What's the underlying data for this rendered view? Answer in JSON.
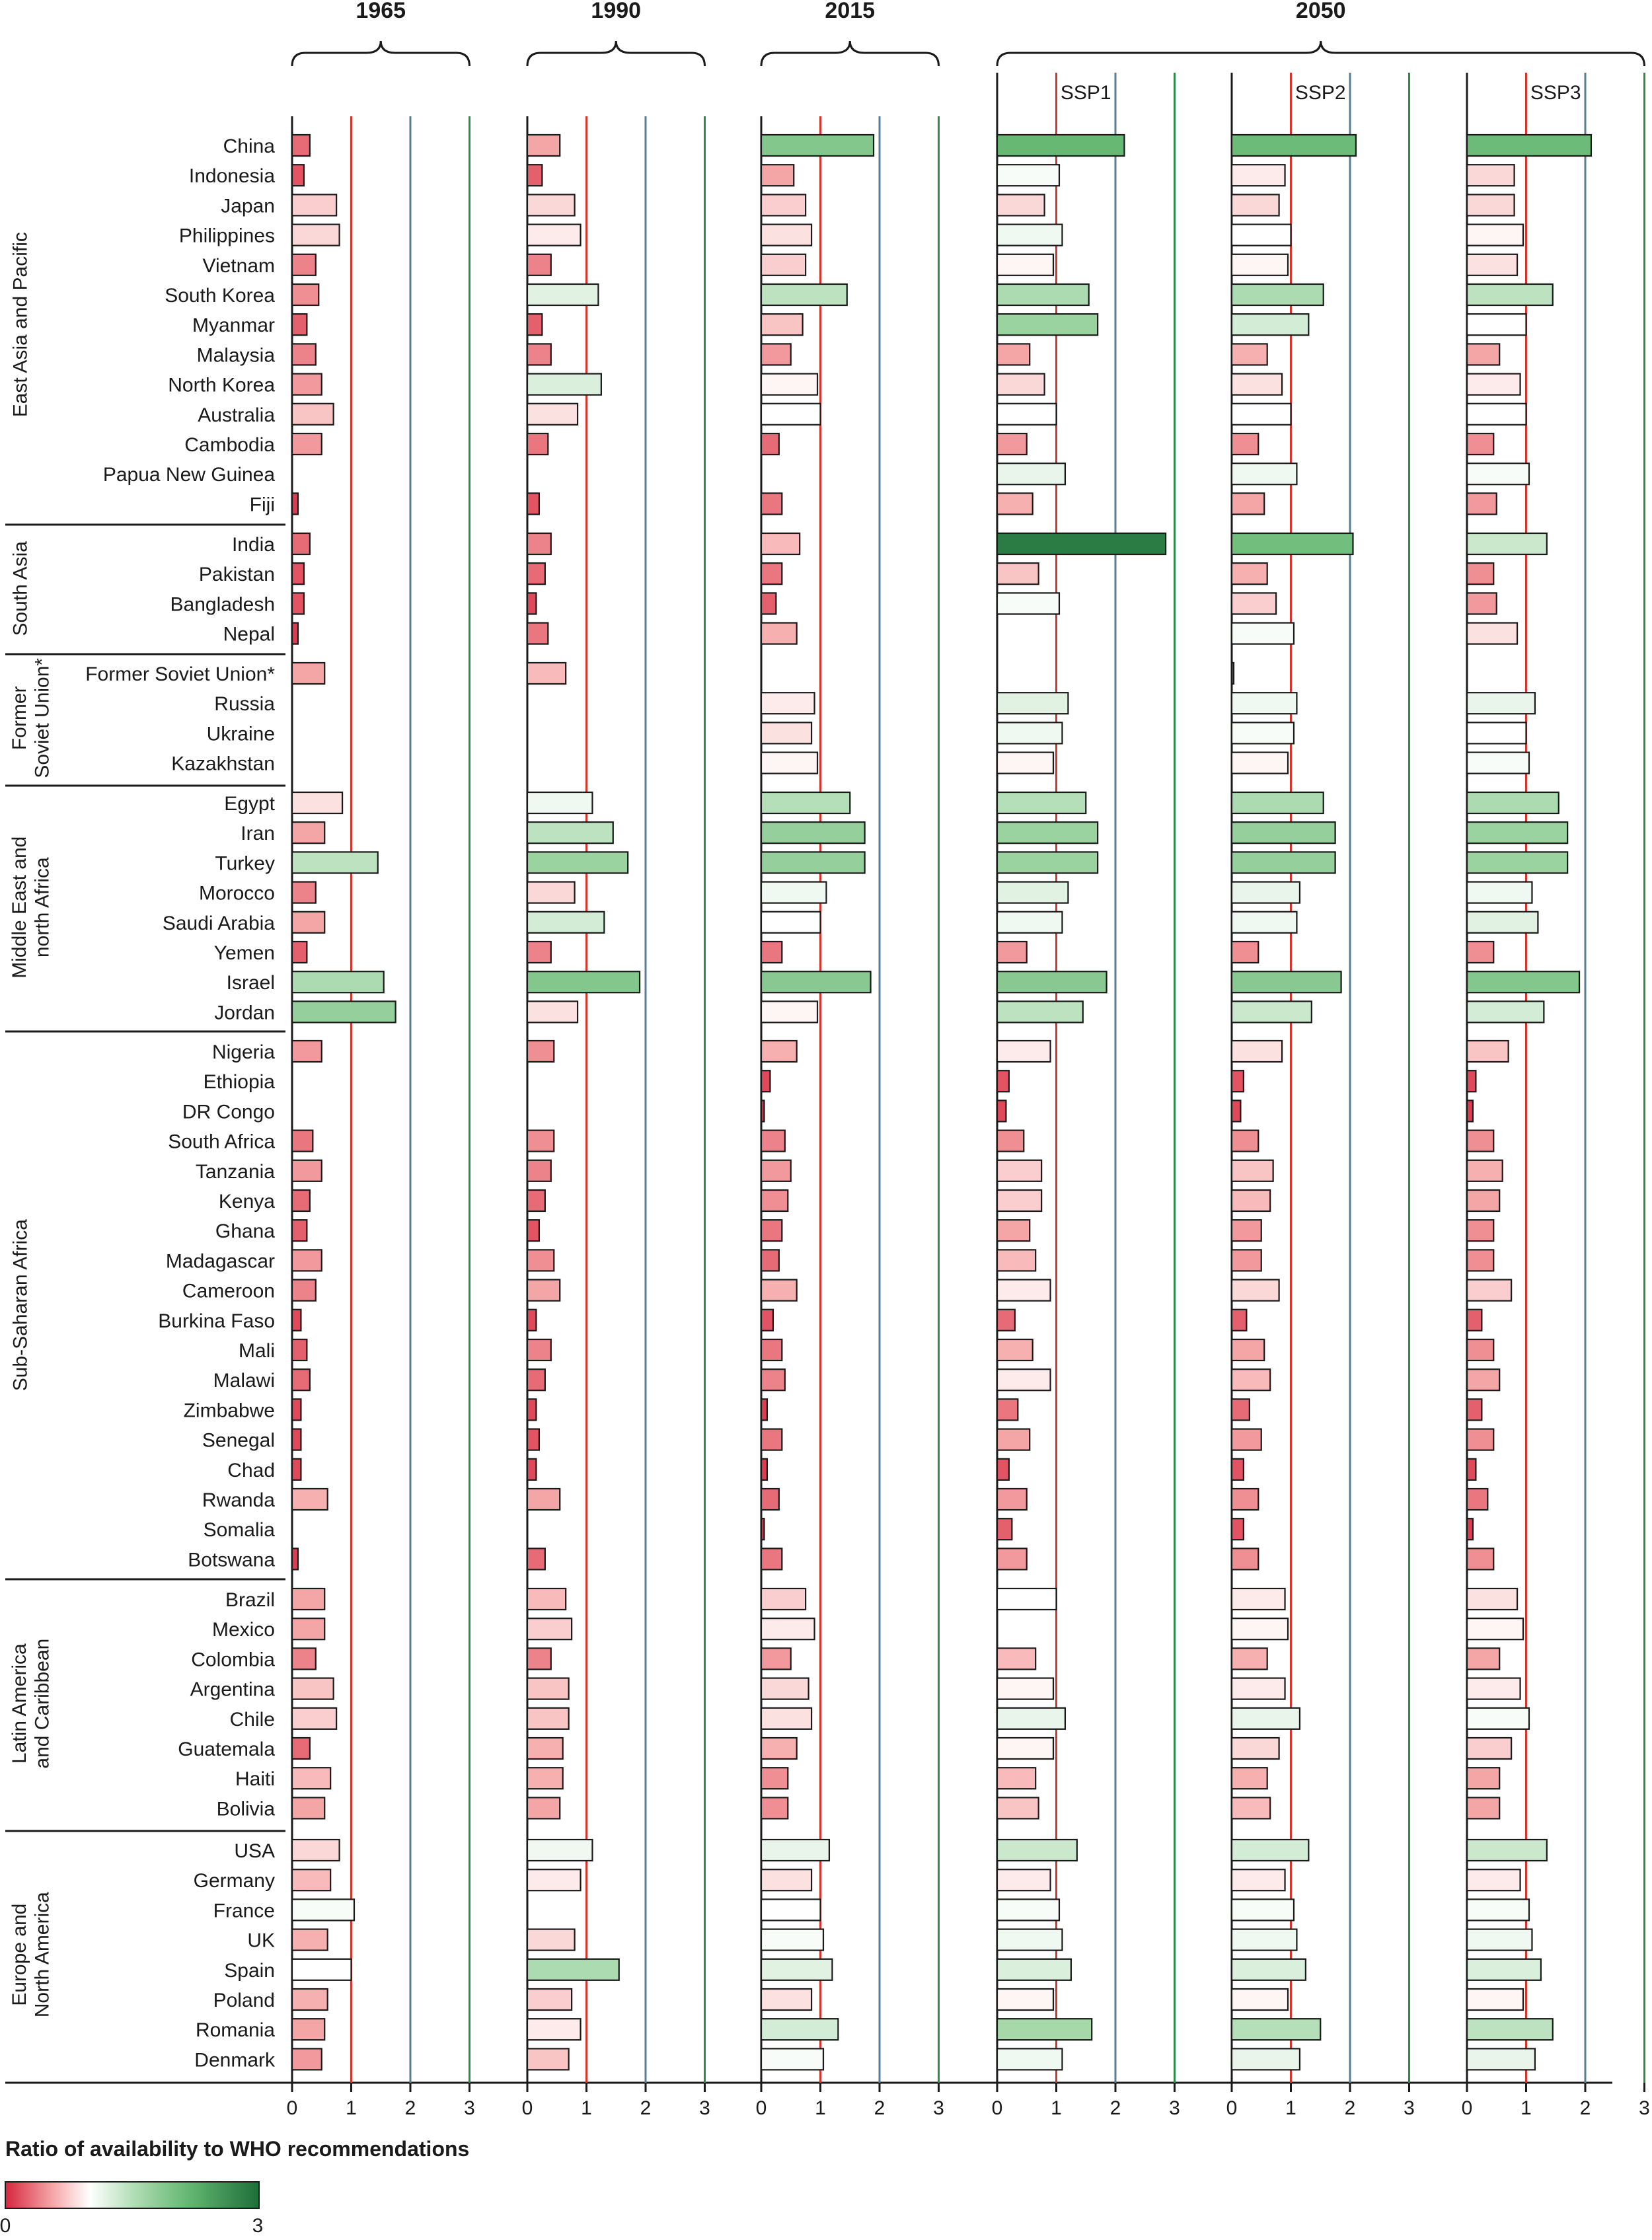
{
  "chart_data": {
    "type": "bar",
    "orientation": "horizontal",
    "colorbar_title": "Ratio of availability to WHO recommendations",
    "colorbar_min": 0,
    "colorbar_max": 3,
    "colorbar_ticks": [
      "0",
      "3"
    ],
    "xlim": [
      0,
      3
    ],
    "xticks": [
      "0",
      "1",
      "2",
      "3"
    ],
    "reference_lines": [
      {
        "x": 1,
        "color": "#d9342b"
      },
      {
        "x": 2,
        "color": "#5b7d92"
      },
      {
        "x": 3,
        "color": "#2e8b4a"
      }
    ],
    "colors": {
      "low": "#d7263d",
      "mid": "#ffffff",
      "high": "#1e6e3a"
    },
    "regions": [
      {
        "name": "East Asia and Pacific",
        "countries": [
          "China",
          "Indonesia",
          "Japan",
          "Philippines",
          "Vietnam",
          "South Korea",
          "Myanmar",
          "Malaysia",
          "North Korea",
          "Australia",
          "Cambodia",
          "Papua New Guinea",
          "Fiji"
        ]
      },
      {
        "name": "South Asia",
        "countries": [
          "India",
          "Pakistan",
          "Bangladesh",
          "Nepal"
        ]
      },
      {
        "name": "Former Soviet Union*",
        "countries": [
          "Former Soviet Union*",
          "Russia",
          "Ukraine",
          "Kazakhstan"
        ]
      },
      {
        "name": "Middle East and north Africa",
        "countries": [
          "Egypt",
          "Iran",
          "Turkey",
          "Morocco",
          "Saudi Arabia",
          "Yemen",
          "Israel",
          "Jordan"
        ]
      },
      {
        "name": "Sub-Saharan Africa",
        "countries": [
          "Nigeria",
          "Ethiopia",
          "DR Congo",
          "South Africa",
          "Tanzania",
          "Kenya",
          "Ghana",
          "Madagascar",
          "Cameroon",
          "Burkina Faso",
          "Mali",
          "Malawi",
          "Zimbabwe",
          "Senegal",
          "Chad",
          "Rwanda",
          "Somalia",
          "Botswana"
        ]
      },
      {
        "name": "Latin America and Caribbean",
        "countries": [
          "Brazil",
          "Mexico",
          "Colombia",
          "Argentina",
          "Chile",
          "Guatemala",
          "Haiti",
          "Bolivia"
        ]
      },
      {
        "name": "Europe and North America",
        "countries": [
          "USA",
          "Germany",
          "France",
          "UK",
          "Spain",
          "Poland",
          "Romania",
          "Denmark"
        ]
      }
    ],
    "panels": [
      {
        "year": "1965",
        "scenario": "",
        "values": [
          [
            0.3,
            0.2,
            0.75,
            0.8,
            0.4,
            0.45,
            0.25,
            0.4,
            0.5,
            0.7,
            0.5,
            null,
            0.1
          ],
          [
            0.3,
            0.2,
            0.2,
            0.1
          ],
          [
            0.55,
            null,
            null,
            null
          ],
          [
            0.85,
            0.55,
            1.45,
            0.4,
            0.55,
            0.25,
            1.55,
            1.75
          ],
          [
            0.5,
            null,
            null,
            0.35,
            0.5,
            0.3,
            0.25,
            0.5,
            0.4,
            0.15,
            0.25,
            0.3,
            0.15,
            0.15,
            0.15,
            0.6,
            null,
            0.1
          ],
          [
            0.55,
            0.55,
            0.4,
            0.7,
            0.75,
            0.3,
            0.65,
            0.55
          ],
          [
            0.8,
            0.65,
            1.05,
            0.6,
            1.0,
            0.6,
            0.55,
            0.5
          ]
        ]
      },
      {
        "year": "1990",
        "scenario": "",
        "values": [
          [
            0.55,
            0.25,
            0.8,
            0.9,
            0.4,
            1.2,
            0.25,
            0.4,
            1.25,
            0.85,
            0.35,
            null,
            0.2
          ],
          [
            0.4,
            0.3,
            0.15,
            0.35
          ],
          [
            0.65,
            null,
            null,
            null
          ],
          [
            1.1,
            1.45,
            1.7,
            0.8,
            1.3,
            0.4,
            1.9,
            0.85
          ],
          [
            0.45,
            null,
            null,
            0.45,
            0.4,
            0.3,
            0.2,
            0.45,
            0.55,
            0.15,
            0.4,
            0.3,
            0.15,
            0.2,
            0.15,
            0.55,
            null,
            0.3
          ],
          [
            0.65,
            0.75,
            0.4,
            0.7,
            0.7,
            0.6,
            0.6,
            0.55
          ],
          [
            1.1,
            0.9,
            null,
            0.8,
            1.55,
            0.75,
            0.9,
            0.7
          ]
        ]
      },
      {
        "year": "2015",
        "scenario": "",
        "values": [
          [
            1.9,
            0.55,
            0.75,
            0.85,
            0.75,
            1.45,
            0.7,
            0.5,
            0.95,
            1.0,
            0.3,
            null,
            0.35
          ],
          [
            0.65,
            0.35,
            0.25,
            0.6
          ],
          [
            null,
            0.9,
            0.85,
            0.95
          ],
          [
            1.5,
            1.75,
            1.75,
            1.1,
            1.0,
            0.35,
            1.85,
            0.95
          ],
          [
            0.6,
            0.15,
            0.05,
            0.4,
            0.5,
            0.45,
            0.35,
            0.3,
            0.6,
            0.2,
            0.35,
            0.4,
            0.1,
            0.35,
            0.1,
            0.3,
            0.05,
            0.35
          ],
          [
            0.75,
            0.9,
            0.5,
            0.8,
            0.85,
            0.6,
            0.45,
            0.45
          ],
          [
            1.15,
            0.85,
            1.0,
            1.05,
            1.2,
            0.85,
            1.3,
            1.05
          ]
        ]
      },
      {
        "year": "2050",
        "scenario": "SSP1",
        "values": [
          [
            2.15,
            1.05,
            0.8,
            1.1,
            0.95,
            1.55,
            1.7,
            0.55,
            0.8,
            1.0,
            0.5,
            1.15,
            0.6
          ],
          [
            2.85,
            0.7,
            1.05,
            null
          ],
          [
            null,
            1.2,
            1.1,
            0.95
          ],
          [
            1.5,
            1.7,
            1.7,
            1.2,
            1.1,
            0.5,
            1.85,
            1.45
          ],
          [
            0.9,
            0.2,
            0.15,
            0.45,
            0.75,
            0.75,
            0.55,
            0.65,
            0.9,
            0.3,
            0.6,
            0.9,
            0.35,
            0.55,
            0.2,
            0.5,
            0.25,
            0.5
          ],
          [
            1.0,
            null,
            0.65,
            0.95,
            1.15,
            0.95,
            0.65,
            0.7
          ],
          [
            1.35,
            0.9,
            1.05,
            1.1,
            1.25,
            0.95,
            1.6,
            1.1
          ]
        ]
      },
      {
        "year": "2050",
        "scenario": "SSP2",
        "values": [
          [
            2.1,
            0.9,
            0.8,
            1.0,
            0.95,
            1.55,
            1.3,
            0.6,
            0.85,
            1.0,
            0.45,
            1.1,
            0.55
          ],
          [
            2.05,
            0.6,
            0.75,
            1.05
          ],
          [
            0.03,
            1.1,
            1.05,
            0.95
          ],
          [
            1.55,
            1.75,
            1.75,
            1.15,
            1.1,
            0.45,
            1.85,
            1.35
          ],
          [
            0.85,
            0.2,
            0.15,
            0.45,
            0.7,
            0.65,
            0.5,
            0.5,
            0.8,
            0.25,
            0.55,
            0.65,
            0.3,
            0.5,
            0.2,
            0.45,
            0.2,
            0.45
          ],
          [
            0.9,
            0.95,
            0.6,
            0.9,
            1.15,
            0.8,
            0.6,
            0.65
          ],
          [
            1.3,
            0.9,
            1.05,
            1.1,
            1.25,
            0.95,
            1.5,
            1.15
          ]
        ]
      },
      {
        "year": "2050",
        "scenario": "SSP3",
        "values": [
          [
            2.1,
            0.8,
            0.8,
            0.95,
            0.85,
            1.45,
            1.0,
            0.55,
            0.9,
            1.0,
            0.45,
            1.05,
            0.5
          ],
          [
            1.35,
            0.45,
            0.5,
            0.85
          ],
          [
            null,
            1.15,
            1.0,
            1.05
          ],
          [
            1.55,
            1.7,
            1.7,
            1.1,
            1.2,
            0.45,
            1.9,
            1.3
          ],
          [
            0.7,
            0.15,
            0.1,
            0.45,
            0.6,
            0.55,
            0.45,
            0.45,
            0.75,
            0.25,
            0.45,
            0.55,
            0.25,
            0.45,
            0.15,
            0.35,
            0.1,
            0.45
          ],
          [
            0.85,
            0.95,
            0.55,
            0.9,
            1.05,
            0.75,
            0.55,
            0.55
          ],
          [
            1.35,
            0.9,
            1.05,
            1.1,
            1.25,
            0.95,
            1.45,
            1.15
          ]
        ]
      }
    ]
  }
}
